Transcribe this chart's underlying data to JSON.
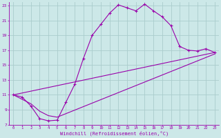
{
  "xlabel": "Windchill (Refroidissement éolien,°C)",
  "bg_color": "#cce8e8",
  "line_color": "#9900aa",
  "grid_color": "#aacccc",
  "xlim": [
    -0.5,
    23.5
  ],
  "ylim": [
    7,
    23.5
  ],
  "xticks": [
    0,
    1,
    2,
    3,
    4,
    5,
    6,
    7,
    8,
    9,
    10,
    11,
    12,
    13,
    14,
    15,
    16,
    17,
    18,
    19,
    20,
    21,
    22,
    23
  ],
  "yticks": [
    7,
    9,
    11,
    13,
    15,
    17,
    19,
    21,
    23
  ],
  "curve1_x": [
    0,
    1,
    2,
    3,
    4,
    5,
    6,
    7,
    8,
    9,
    10,
    11,
    12,
    13,
    14,
    15,
    16,
    17,
    18,
    19,
    20,
    21,
    22,
    23
  ],
  "curve1_y": [
    11.0,
    10.7,
    9.5,
    7.8,
    7.5,
    7.6,
    10.0,
    12.4,
    15.9,
    19.0,
    20.5,
    22.0,
    23.1,
    22.7,
    22.3,
    23.2,
    22.3,
    21.5,
    20.3,
    17.5,
    17.0,
    16.9,
    17.2,
    16.7
  ],
  "curve2_x": [
    0,
    1,
    2,
    3,
    4,
    5,
    23
  ],
  "curve2_y": [
    11.0,
    10.4,
    9.8,
    8.8,
    8.2,
    8.0,
    16.5
  ],
  "curve3_x": [
    0,
    23
  ],
  "curve3_y": [
    11.0,
    16.7
  ]
}
